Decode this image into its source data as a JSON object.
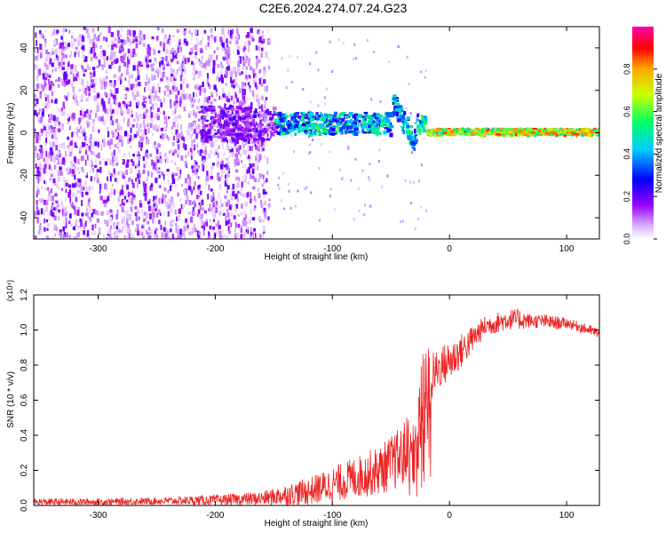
{
  "title": "C2E6.2024.274.07.24.G23",
  "chart_data": [
    {
      "type": "heatmap",
      "xlabel": "Height of straight line (km)",
      "ylabel": "Frequency (Hz)",
      "xlim": [
        -355,
        128
      ],
      "ylim": [
        -50,
        50
      ],
      "x_ticks": [
        -300,
        -200,
        -100,
        0,
        100
      ],
      "y_ticks": [
        -40,
        -20,
        0,
        20,
        40
      ],
      "colorbar": {
        "label": "Normalized spectral amplitude",
        "range": [
          0,
          1
        ],
        "ticks": [
          0.0,
          0.2,
          0.4,
          0.6,
          0.8
        ],
        "colors": [
          "#ffffff",
          "#9900ff",
          "#0000ff",
          "#00ffff",
          "#00ff00",
          "#ffff00",
          "#ff0000",
          "#ff00ff"
        ]
      },
      "features": [
        {
          "region": "noise",
          "x_range": [
            -355,
            -155
          ],
          "y_range": [
            -50,
            50
          ],
          "amplitude": 0.15
        },
        {
          "region": "signal-ridge",
          "x_range": [
            -155,
            -20
          ],
          "center_freq": 5,
          "amplitude": 0.45
        },
        {
          "region": "signal-ridge",
          "x_range": [
            -20,
            128
          ],
          "center_freq": 1,
          "amplitude": 0.75
        }
      ]
    },
    {
      "type": "line",
      "xlabel": "Height of straight line (km)",
      "ylabel": "SNR (10 * v/v)",
      "y_multiplier": "(x10⁴)",
      "xlim": [
        -355,
        128
      ],
      "ylim": [
        0,
        1.2
      ],
      "x_ticks": [
        -300,
        -200,
        -100,
        0,
        100
      ],
      "y_ticks": [
        0.0,
        0.2,
        0.4,
        0.6,
        0.8,
        1.0,
        1.2
      ],
      "series": [
        {
          "color": "#ee2222",
          "x": [
            -355,
            -300,
            -250,
            -200,
            -160,
            -140,
            -120,
            -100,
            -80,
            -60,
            -40,
            -30,
            -25,
            -20,
            -15,
            -10,
            0,
            10,
            20,
            30,
            40,
            50,
            60,
            70,
            80,
            90,
            100,
            110,
            128
          ],
          "y": [
            0.02,
            0.02,
            0.025,
            0.03,
            0.04,
            0.06,
            0.08,
            0.12,
            0.16,
            0.2,
            0.28,
            0.38,
            0.5,
            0.68,
            0.72,
            0.78,
            0.82,
            0.88,
            0.95,
            1.02,
            1.04,
            1.06,
            1.06,
            1.05,
            1.05,
            1.04,
            1.04,
            1.02,
            0.98
          ],
          "noise_amplitude": [
            0.02,
            0.02,
            0.02,
            0.03,
            0.04,
            0.06,
            0.08,
            0.1,
            0.12,
            0.14,
            0.18,
            0.25,
            0.3,
            0.3,
            0.15,
            0.12,
            0.12,
            0.1,
            0.08,
            0.06,
            0.06,
            0.06,
            0.06,
            0.04,
            0.04,
            0.04,
            0.03,
            0.03,
            0.03
          ]
        }
      ]
    }
  ]
}
